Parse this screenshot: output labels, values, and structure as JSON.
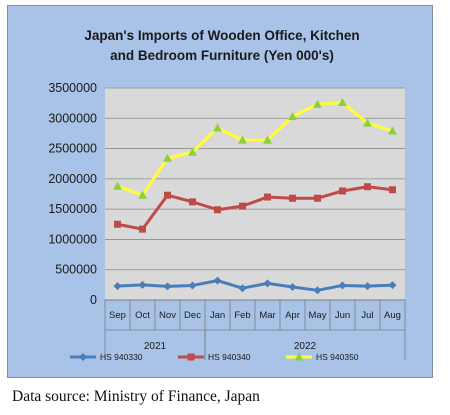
{
  "chart_data": {
    "type": "line",
    "title_lines": [
      "Japan's Imports of  Wooden Office, Kitchen",
      "and Bedroom Furniture (Yen 000's)"
    ],
    "categories": [
      "Sep",
      "Oct",
      "Nov",
      "Dec",
      "Jan",
      "Feb",
      "Mar",
      "Apr",
      "May",
      "Jun",
      "Jul",
      "Aug"
    ],
    "year_groups": [
      {
        "label": "2021",
        "start": 0,
        "end": 3
      },
      {
        "label": "2022",
        "start": 4,
        "end": 11
      }
    ],
    "y_ticks": [
      "0",
      "500000",
      "1000000",
      "1500000",
      "2000000",
      "2500000",
      "3000000",
      "3500000"
    ],
    "ylim": [
      0,
      3500000
    ],
    "grid": true,
    "legend_position": "bottom",
    "series": [
      {
        "name": "HS 940330",
        "color": "#4a7ebb",
        "marker": "diamond",
        "values": [
          230000,
          250000,
          225000,
          240000,
          320000,
          195000,
          275000,
          215000,
          160000,
          240000,
          230000,
          245000
        ]
      },
      {
        "name": "HS 940340",
        "color": "#be4b48",
        "marker": "square",
        "values": [
          1250000,
          1170000,
          1730000,
          1620000,
          1490000,
          1550000,
          1700000,
          1680000,
          1680000,
          1800000,
          1870000,
          1820000
        ]
      },
      {
        "name": "HS 940350",
        "color": "#ffff33",
        "marker": "triangle",
        "values": [
          1880000,
          1730000,
          2340000,
          2440000,
          2840000,
          2640000,
          2640000,
          3030000,
          3230000,
          3260000,
          2920000,
          2790000
        ]
      }
    ]
  },
  "source_text": "Data source: Ministry of Finance, Japan"
}
